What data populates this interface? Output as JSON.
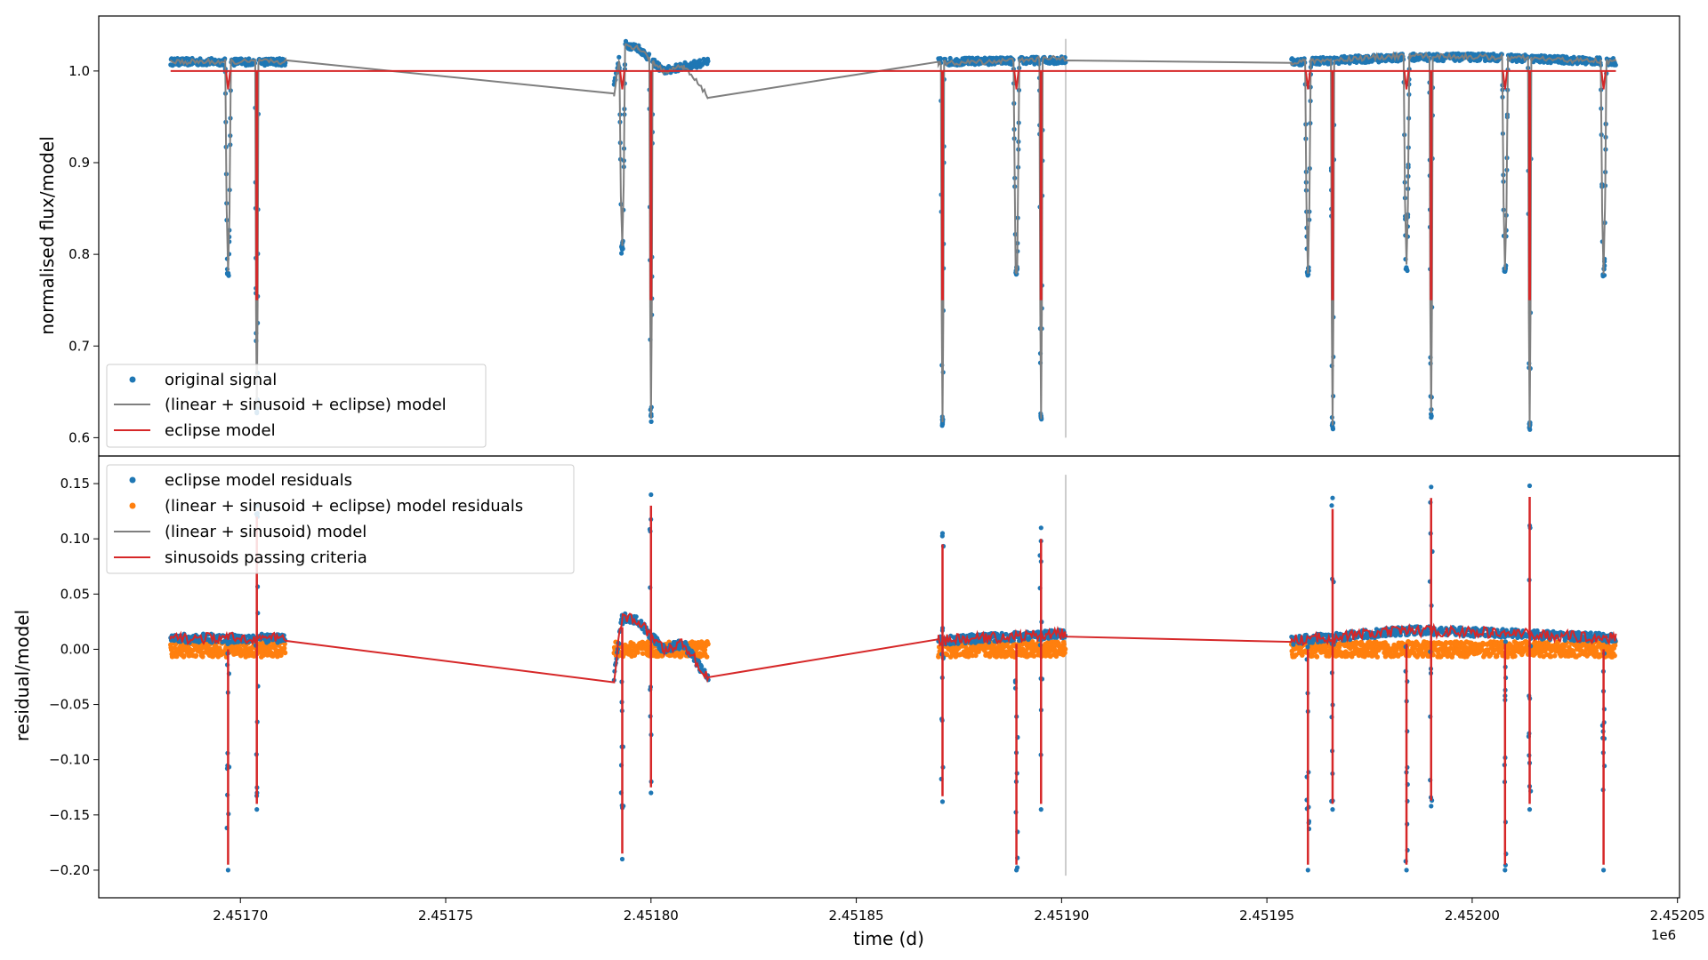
{
  "chart_data": [
    {
      "type": "scatter",
      "ylabel": "normalised flux/model",
      "xlim": [
        2451665.5,
        2452050.5
      ],
      "ylim": [
        0.58,
        1.06
      ],
      "yticks": [
        0.6,
        0.7,
        0.8,
        0.9,
        1.0
      ],
      "ytick_labels": [
        "0.6",
        "0.7",
        "0.8",
        "0.9",
        "1.0"
      ],
      "grid": false,
      "legend_placement": "lower-left",
      "vline_x": 2451901,
      "series": [
        {
          "name": "original signal",
          "kind": "scatter",
          "color": "#1f77b4",
          "segments": [
            [
              2451683,
              2451711
            ],
            [
              2451791,
              2451814
            ],
            [
              2451870,
              2451901
            ],
            [
              2451956,
              2452035
            ]
          ],
          "baseline": [
            [
              2451683,
              1.01
            ],
            [
              2451700,
              1.01
            ],
            [
              2451711,
              1.01
            ],
            [
              2451791,
              0.985
            ],
            [
              2451793,
              1.03
            ],
            [
              2451797,
              1.025
            ],
            [
              2451803,
              1.0
            ],
            [
              2451808,
              1.005
            ],
            [
              2451814,
              1.01
            ],
            [
              2451870,
              1.01
            ],
            [
              2451901,
              1.012
            ],
            [
              2451956,
              1.01
            ],
            [
              2451985,
              1.015
            ],
            [
              2452005,
              1.015
            ],
            [
              2452035,
              1.01
            ]
          ]
        },
        {
          "name": "(linear + sinusoid + eclipse) model",
          "kind": "line",
          "color": "#7f7f7f",
          "points": [
            [
              2451683,
              1.01
            ],
            [
              2451711,
              1.01
            ],
            [
              2451791,
              0.975
            ],
            [
              2451793,
              1.03
            ],
            [
              2451797,
              1.025
            ],
            [
              2451803,
              1.0
            ],
            [
              2451808,
              1.005
            ],
            [
              2451814,
              0.972
            ],
            [
              2451870,
              1.008
            ],
            [
              2451901,
              1.014
            ],
            [
              2451956,
              1.01
            ],
            [
              2451985,
              1.017
            ],
            [
              2452005,
              1.015
            ],
            [
              2452035,
              1.01
            ]
          ]
        },
        {
          "name": "eclipse model",
          "kind": "line",
          "color": "#d62728",
          "level": 1.0,
          "x_range": [
            2451683,
            2452035
          ]
        }
      ],
      "eclipses": [
        {
          "x": 2451697,
          "depth": 0.77,
          "width": 1.4,
          "kind": "secondary"
        },
        {
          "x": 2451704,
          "depth": 0.62,
          "width": 0.8,
          "kind": "primary"
        },
        {
          "x": 2451793,
          "depth": 0.78,
          "width": 1.4,
          "kind": "secondary"
        },
        {
          "x": 2451800,
          "depth": 0.61,
          "width": 0.8,
          "kind": "primary"
        },
        {
          "x": 2451871,
          "depth": 0.61,
          "width": 0.8,
          "kind": "primary"
        },
        {
          "x": 2451889,
          "depth": 0.77,
          "width": 1.4,
          "kind": "secondary"
        },
        {
          "x": 2451895,
          "depth": 0.61,
          "width": 0.8,
          "kind": "primary"
        },
        {
          "x": 2451960,
          "depth": 0.77,
          "width": 1.4,
          "kind": "secondary"
        },
        {
          "x": 2451966,
          "depth": 0.6,
          "width": 0.8,
          "kind": "primary"
        },
        {
          "x": 2451984,
          "depth": 0.77,
          "width": 1.4,
          "kind": "secondary"
        },
        {
          "x": 2451990,
          "depth": 0.61,
          "width": 0.8,
          "kind": "primary"
        },
        {
          "x": 2452008,
          "depth": 0.77,
          "width": 1.4,
          "kind": "secondary"
        },
        {
          "x": 2452014,
          "depth": 0.6,
          "width": 0.8,
          "kind": "primary"
        },
        {
          "x": 2452032,
          "depth": 0.77,
          "width": 1.4,
          "kind": "secondary"
        }
      ]
    },
    {
      "type": "scatter",
      "xlabel": "time (d)",
      "ylabel": "residual/model",
      "xlim": [
        2451665.5,
        2452050.5
      ],
      "ylim": [
        -0.225,
        0.175
      ],
      "xticks": [
        2451700,
        2451750,
        2451800,
        2451850,
        2451900,
        2451950,
        2452000,
        2452050
      ],
      "xtick_labels": [
        "2.45170",
        "2.45175",
        "2.45180",
        "2.45185",
        "2.45190",
        "2.45195",
        "2.45200",
        "2.45205"
      ],
      "xaxis_offset_label": "1e6",
      "yticks": [
        -0.2,
        -0.15,
        -0.1,
        -0.05,
        0.0,
        0.05,
        0.1,
        0.15
      ],
      "ytick_labels": [
        "−0.20",
        "−0.15",
        "−0.10",
        "−0.05",
        "0.00",
        "0.05",
        "0.10",
        "0.15"
      ],
      "grid": false,
      "legend_placement": "upper-left",
      "vline_x": 2451901,
      "series": [
        {
          "name": "eclipse model residuals",
          "kind": "scatter",
          "color": "#1f77b4"
        },
        {
          "name": "(linear + sinusoid + eclipse) model residuals",
          "kind": "scatter",
          "color": "#ff7f0e",
          "level": 0.0
        },
        {
          "name": "(linear + sinusoid) model",
          "kind": "line",
          "color": "#7f7f7f"
        },
        {
          "name": "sinusoids passing criteria",
          "kind": "line",
          "color": "#d62728",
          "points": [
            [
              2451683,
              0.01
            ],
            [
              2451711,
              0.01
            ],
            [
              2451791,
              -0.025
            ],
            [
              2451793,
              0.03
            ],
            [
              2451797,
              0.025
            ],
            [
              2451803,
              0.0
            ],
            [
              2451808,
              0.005
            ],
            [
              2451814,
              -0.027
            ],
            [
              2451870,
              0.008
            ],
            [
              2451901,
              0.014
            ],
            [
              2451956,
              0.008
            ],
            [
              2451985,
              0.017
            ],
            [
              2452005,
              0.015
            ],
            [
              2452035,
              0.01
            ]
          ]
        }
      ],
      "residual_features": [
        {
          "x": 2451697,
          "low": -0.2,
          "high": 0.01
        },
        {
          "x": 2451704,
          "low": -0.145,
          "high": 0.13
        },
        {
          "x": 2451793,
          "low": -0.19,
          "high": 0.03
        },
        {
          "x": 2451800,
          "low": -0.13,
          "high": 0.14
        },
        {
          "x": 2451871,
          "low": -0.138,
          "high": 0.105
        },
        {
          "x": 2451889,
          "low": -0.2,
          "high": 0.015
        },
        {
          "x": 2451895,
          "low": -0.145,
          "high": 0.11
        },
        {
          "x": 2451960,
          "low": -0.2,
          "high": 0.01
        },
        {
          "x": 2451966,
          "low": -0.145,
          "high": 0.137
        },
        {
          "x": 2451984,
          "low": -0.2,
          "high": 0.015
        },
        {
          "x": 2451990,
          "low": -0.142,
          "high": 0.147
        },
        {
          "x": 2452008,
          "low": -0.2,
          "high": 0.015
        },
        {
          "x": 2452014,
          "low": -0.145,
          "high": 0.148
        },
        {
          "x": 2452032,
          "low": -0.2,
          "high": 0.01
        }
      ]
    }
  ]
}
